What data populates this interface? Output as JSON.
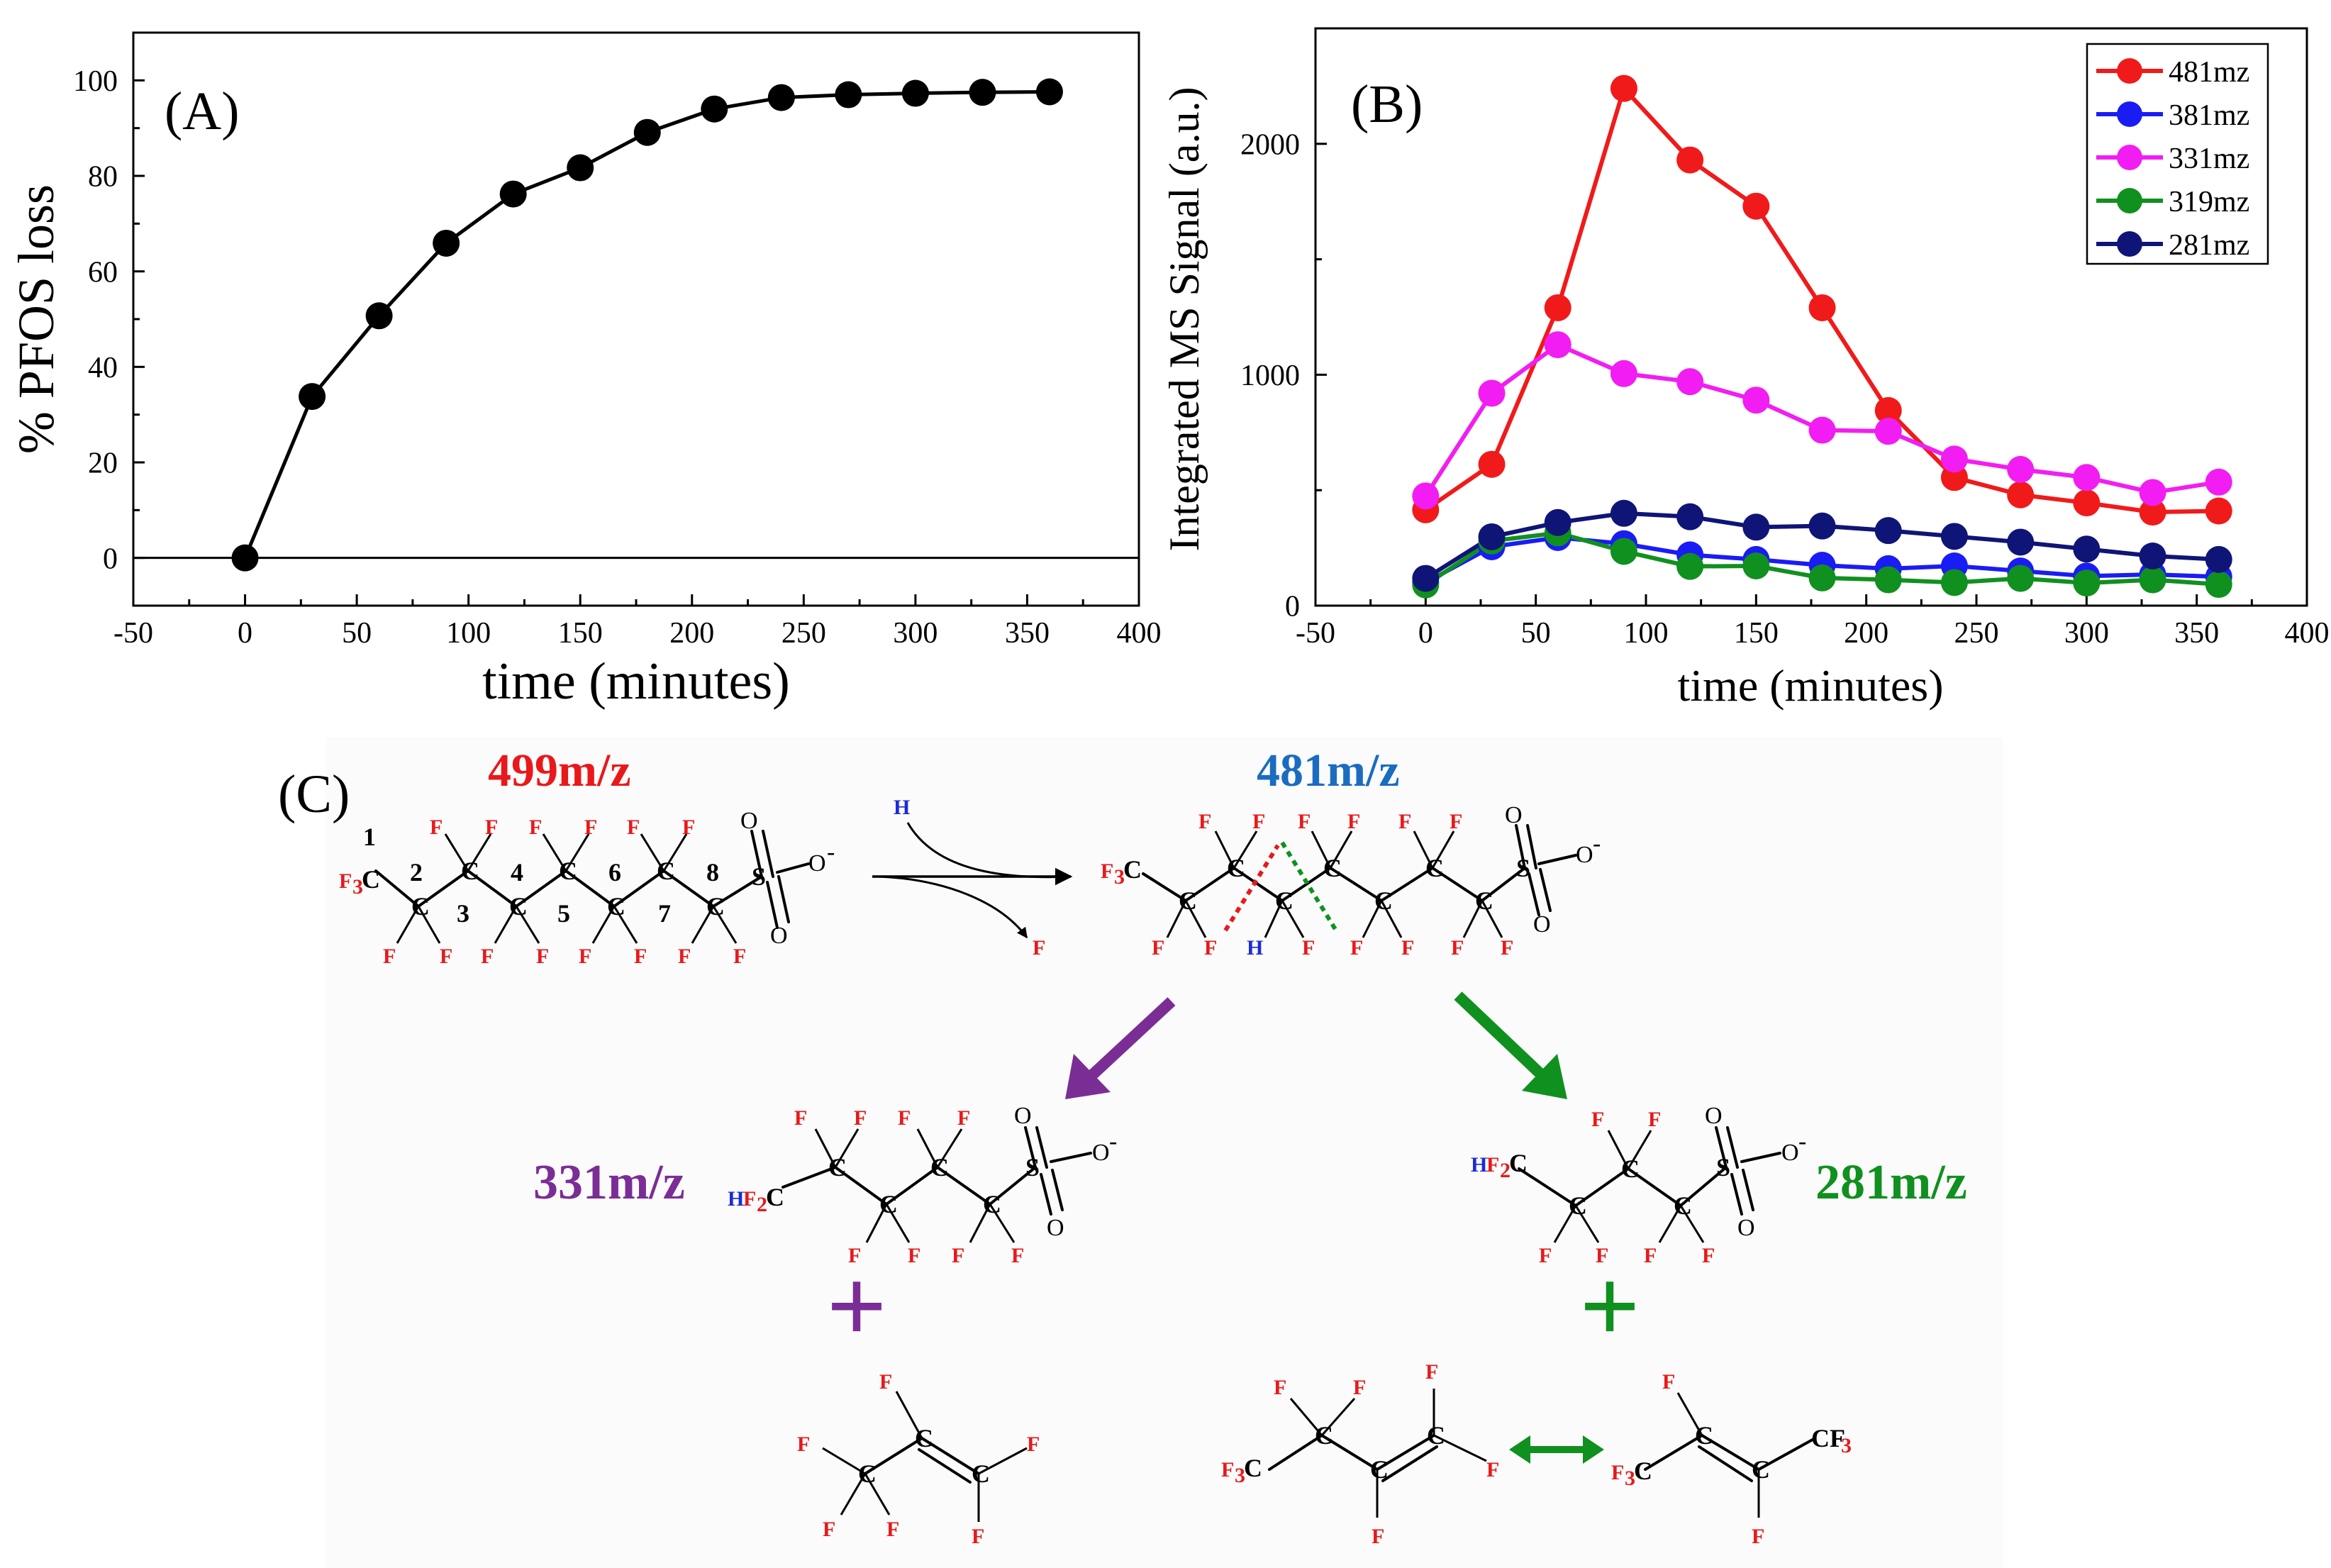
{
  "colors": {
    "red": "#f11a1a",
    "blue": "#1a1cf4",
    "magenta": "#f21df2",
    "green": "#10901f",
    "navy": "#0f1576",
    "label_red": "#e8191a",
    "label_blue": "#1a6cc0",
    "purple": "#7b2d96",
    "dark_green": "#10901f"
  },
  "chart_data": [
    {
      "type": "line",
      "panel_label": "(A)",
      "x": [
        0,
        30,
        60,
        90,
        120,
        150,
        180,
        210,
        240,
        270,
        300,
        330,
        360
      ],
      "series": [
        {
          "name": "% PFOS loss",
          "values": [
            0,
            33.8,
            50.7,
            65.9,
            76.2,
            81.7,
            89.1,
            94.0,
            96.4,
            97.0,
            97.3,
            97.5,
            97.6
          ]
        }
      ],
      "xlabel": "time (minutes)",
      "ylabel": "% PFOS loss",
      "xlim": [
        -50,
        400
      ],
      "ylim": [
        -10,
        110
      ],
      "xticks": [
        "-50",
        "0",
        "50",
        "100",
        "150",
        "200",
        "250",
        "300",
        "350",
        "400"
      ],
      "yticks": [
        "0",
        "20",
        "40",
        "60",
        "80",
        "100"
      ],
      "legend": "none"
    },
    {
      "type": "line",
      "panel_label": "(B)",
      "x": [
        0,
        30,
        60,
        90,
        120,
        150,
        180,
        210,
        240,
        270,
        300,
        330,
        360
      ],
      "series": [
        {
          "name": "481mz",
          "values": [
            415,
            612,
            1290,
            2240,
            1930,
            1730,
            1290,
            845,
            555,
            480,
            445,
            405,
            410
          ]
        },
        {
          "name": "381mz",
          "values": [
            100,
            255,
            295,
            268,
            220,
            200,
            175,
            160,
            172,
            150,
            128,
            135,
            125
          ]
        },
        {
          "name": "331mz",
          "values": [
            475,
            920,
            1130,
            1005,
            970,
            890,
            760,
            755,
            635,
            590,
            555,
            490,
            535
          ]
        },
        {
          "name": "319mz",
          "values": [
            90,
            280,
            315,
            235,
            170,
            172,
            120,
            112,
            100,
            118,
            98,
            112,
            92
          ]
        },
        {
          "name": "281mz",
          "values": [
            118,
            298,
            360,
            400,
            385,
            340,
            345,
            325,
            300,
            275,
            245,
            215,
            200
          ]
        }
      ],
      "xlabel": "time (minutes)",
      "ylabel": "Integrated MS Signal (a.u.)",
      "xlim": [
        -50,
        400
      ],
      "ylim": [
        0,
        2500
      ],
      "xticks": [
        "-50",
        "0",
        "50",
        "100",
        "150",
        "200",
        "250",
        "300",
        "350",
        "400"
      ],
      "yticks": [
        "0",
        "1000",
        "2000"
      ],
      "legend": "top-right"
    }
  ],
  "scheme": {
    "panel_label": "(C)",
    "pfos_label": "499m/z",
    "intermediate_label": "481m/z",
    "left_product_label": "331m/z",
    "right_product_label": "281m/z",
    "plus": "+",
    "carbon_numbers": [
      "1",
      "2",
      "3",
      "4",
      "5",
      "6",
      "7",
      "8"
    ],
    "atoms": {
      "C": "C",
      "F": "F",
      "H": "H",
      "O": "O",
      "O_minus": "O",
      "minus": "-",
      "F3C": "F",
      "F3C_sub": "3",
      "F3C_tail": "C",
      "CF3_head": "CF",
      "CF3_sub": "3",
      "HF2C_H": "H",
      "HF2C_F": "F",
      "HF2C_sub": "2",
      "HF2C_C": "C",
      "S": "S"
    }
  }
}
